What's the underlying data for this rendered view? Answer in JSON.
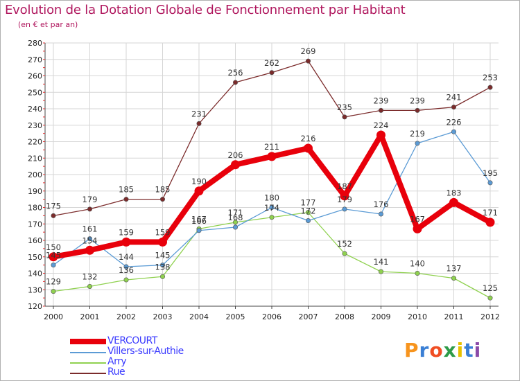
{
  "chart_data": {
    "type": "line",
    "title": "Evolution de la Dotation Globale de Fonctionnement par Habitant",
    "subtitle": "(en € et par an)",
    "x": [
      "2000",
      "2001",
      "2002",
      "2003",
      "2004",
      "2005",
      "2006",
      "2007",
      "2008",
      "2009",
      "2010",
      "2011",
      "2012"
    ],
    "ylim": [
      120,
      280
    ],
    "yticks": [
      120,
      130,
      140,
      150,
      160,
      170,
      180,
      190,
      200,
      210,
      220,
      230,
      240,
      250,
      260,
      270,
      280
    ],
    "grid": true,
    "legend_position": "bottom-left",
    "series": [
      {
        "name": "VERCOURT",
        "color": "#e8000b",
        "values": [
          150,
          154,
          159,
          159,
          190,
          206,
          211,
          216,
          187,
          224,
          167,
          183,
          171
        ]
      },
      {
        "name": "Villers-sur-Authie",
        "color": "#5b9bd5",
        "values": [
          145,
          161,
          144,
          145,
          166,
          168,
          180,
          172,
          179,
          176,
          219,
          226,
          195
        ]
      },
      {
        "name": "Arry",
        "color": "#8fd14f",
        "values": [
          129,
          132,
          136,
          138,
          167,
          171,
          174,
          177,
          152,
          141,
          140,
          137,
          125
        ]
      },
      {
        "name": "Rue",
        "color": "#7b2b2b",
        "values": [
          175,
          179,
          185,
          185,
          231,
          256,
          262,
          269,
          235,
          239,
          239,
          241,
          253
        ]
      }
    ]
  },
  "brand": {
    "text": "Proxiti",
    "colors": [
      "#f7941d",
      "#3a7fd5",
      "#f04e23",
      "#2e9b48",
      "#e8c100",
      "#3a7fd5",
      "#8b4aa8"
    ]
  }
}
